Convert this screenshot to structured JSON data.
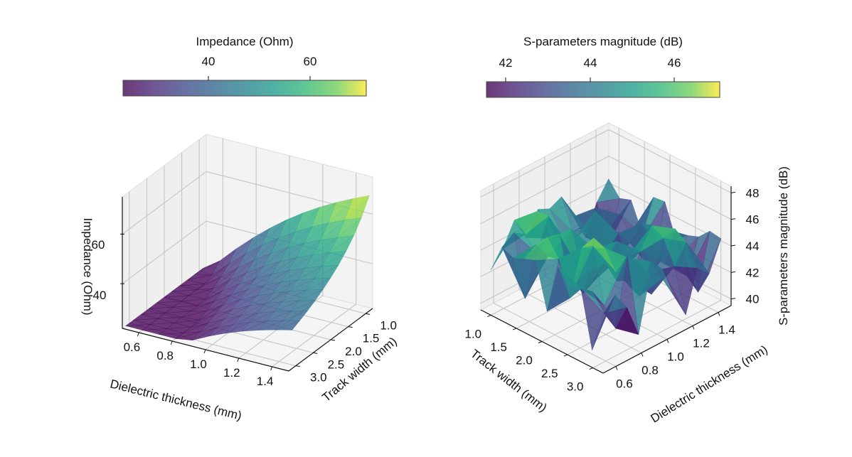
{
  "chart_data": [
    {
      "type": "surface3d",
      "title": "",
      "xlabel": "Dielectric thickness (mm)",
      "ylabel": "Track width (mm)",
      "zlabel": "Impedance (Ohm)",
      "x_ticks": [
        "0.6",
        "0.8",
        "1.0",
        "1.2",
        "1.4"
      ],
      "y_ticks": [
        "1.0",
        "1.5",
        "2.0",
        "2.5",
        "3.0"
      ],
      "z_ticks": [
        "40",
        "60"
      ],
      "xlim": [
        0.5,
        1.5
      ],
      "ylim": [
        0.8,
        3.2
      ],
      "zlim": [
        22,
        75
      ],
      "colorbar": {
        "label": "Impedance (Ohm)",
        "ticks": [
          "40",
          "60"
        ],
        "range": [
          23,
          71
        ],
        "colormap": "viridis",
        "placement": "top"
      },
      "x": [
        0.5,
        0.6,
        0.7,
        0.8,
        0.9,
        1.0,
        1.1,
        1.2,
        1.3,
        1.4,
        1.5
      ],
      "y": [
        1.0,
        1.2,
        1.4,
        1.6,
        1.8,
        2.0,
        2.2,
        2.4,
        2.6,
        2.8,
        3.0
      ],
      "z_description": "Smooth surface: impedance increases with dielectric thickness and decreases with track width; ~23 Ohm at (0.5 mm, 3.0 mm) up to ~71 Ohm at (1.5 mm, 1.0 mm)"
    },
    {
      "type": "surface3d",
      "title": "",
      "xlabel": "Track width (mm)",
      "ylabel": "Dielectric thickness (mm)",
      "zlabel": "S-parameters magnitude (dB)",
      "x_ticks": [
        "1.0",
        "1.5",
        "2.0",
        "2.5",
        "3.0"
      ],
      "y_ticks": [
        "0.6",
        "0.8",
        "1.0",
        "1.2",
        "1.4"
      ],
      "z_ticks": [
        "40",
        "42",
        "44",
        "46",
        "48"
      ],
      "xlim": [
        0.8,
        3.2
      ],
      "ylim": [
        0.5,
        1.5
      ],
      "zlim": [
        39.5,
        48.5
      ],
      "colorbar": {
        "label": "S-parameters magnitude (dB)",
        "ticks": [
          "42",
          "44",
          "46"
        ],
        "range": [
          41.5,
          47.1
        ],
        "colormap": "viridis",
        "placement": "top"
      },
      "z_description": "Noisy jagged surface fluctuating mostly between ~41.5 and ~47 dB with sharp downward spikes"
    }
  ]
}
